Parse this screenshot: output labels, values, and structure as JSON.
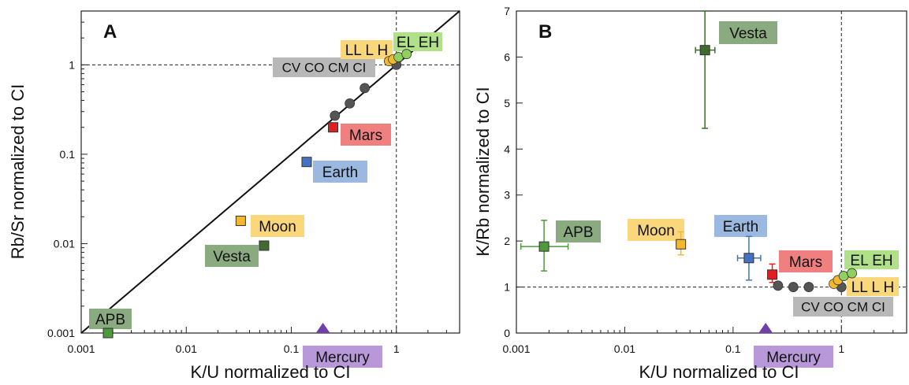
{
  "chart_data": [
    {
      "id": "A",
      "type": "scatter",
      "panel_label": "A",
      "xlabel": "K/U normalized to CI",
      "ylabel": "Rb/Sr normalized to CI",
      "xscale": "log",
      "yscale": "log",
      "xlim": [
        0.001,
        4
      ],
      "ylim": [
        0.001,
        4
      ],
      "xticks": [
        "0.001",
        "0.01",
        "0.1",
        "1"
      ],
      "yticks": [
        "0.001",
        "0.01",
        "0.1",
        "1"
      ],
      "reference_lines": {
        "x": 1,
        "y": 1,
        "style": "dashed"
      },
      "line_1to1": true,
      "points": [
        {
          "name": "APB",
          "x": 0.0018,
          "y": 0.001,
          "marker": "square",
          "color": "#4e9a3a"
        },
        {
          "name": "Vesta",
          "x": 0.055,
          "y": 0.0095,
          "marker": "square",
          "color": "#3e6b2e"
        },
        {
          "name": "Moon",
          "x": 0.033,
          "y": 0.018,
          "marker": "square",
          "color": "#f2b830"
        },
        {
          "name": "Earth",
          "x": 0.14,
          "y": 0.082,
          "marker": "square",
          "color": "#4572c0"
        },
        {
          "name": "Mars",
          "x": 0.25,
          "y": 0.2,
          "marker": "square",
          "color": "#e02020"
        },
        {
          "name": "CV",
          "x": 0.26,
          "y": 0.27,
          "marker": "circle",
          "color": "#555555"
        },
        {
          "name": "CO",
          "x": 0.36,
          "y": 0.37,
          "marker": "circle",
          "color": "#555555"
        },
        {
          "name": "CM",
          "x": 0.5,
          "y": 0.55,
          "marker": "circle",
          "color": "#555555"
        },
        {
          "name": "CI",
          "x": 1.0,
          "y": 1.0,
          "marker": "circle",
          "color": "#555555"
        },
        {
          "name": "LL",
          "x": 0.85,
          "y": 1.1,
          "marker": "circle",
          "color": "#f2b830"
        },
        {
          "name": "L",
          "x": 0.93,
          "y": 1.15,
          "marker": "circle",
          "color": "#f2b830"
        },
        {
          "name": "EL",
          "x": 1.05,
          "y": 1.22,
          "marker": "circle",
          "color": "#8fd060"
        },
        {
          "name": "EH",
          "x": 1.25,
          "y": 1.32,
          "marker": "circle",
          "color": "#8fd060"
        }
      ],
      "callouts": [
        {
          "text": "APB",
          "color": "#8aaa80"
        },
        {
          "text": "Vesta",
          "color": "#8aaa80"
        },
        {
          "text": "Moon",
          "color": "#fbd77b"
        },
        {
          "text": "Earth",
          "color": "#9ab8e0"
        },
        {
          "text": "Mars",
          "color": "#f08080"
        },
        {
          "text": "CV CO CM CI",
          "color": "#b8b8b8"
        },
        {
          "text": "LL L H",
          "color": "#fbd77b"
        },
        {
          "text": "EL EH",
          "color": "#b0e088"
        },
        {
          "text": "Mercury",
          "color": "#b898d8",
          "marker_color": "#7040a8",
          "x": 0.2
        }
      ]
    },
    {
      "id": "B",
      "type": "scatter",
      "panel_label": "B",
      "xlabel": "K/U normalized to CI",
      "ylabel": "K/Rb normalized to CI",
      "xscale": "log",
      "yscale": "linear",
      "xlim": [
        0.001,
        4
      ],
      "ylim": [
        0,
        7
      ],
      "xticks": [
        "0.001",
        "0.01",
        "0.1",
        "1"
      ],
      "yticks": [
        "0",
        "1",
        "2",
        "3",
        "4",
        "5",
        "6",
        "7"
      ],
      "reference_lines": {
        "x": 1,
        "y": 1,
        "style": "dashed"
      },
      "points": [
        {
          "name": "APB",
          "x": 0.0018,
          "y": 1.88,
          "marker": "square",
          "color": "#4e9a3a",
          "xerr": [
            0.0011,
            0.003
          ],
          "yerr": [
            1.35,
            2.45
          ]
        },
        {
          "name": "Vesta",
          "x": 0.055,
          "y": 6.15,
          "marker": "square",
          "color": "#3e6b2e",
          "xerr": [
            0.045,
            0.068
          ],
          "yerr": [
            4.45,
            7.0
          ]
        },
        {
          "name": "Moon",
          "x": 0.033,
          "y": 1.93,
          "marker": "square",
          "color": "#f2b830",
          "yerr": [
            1.7,
            2.2
          ]
        },
        {
          "name": "Earth",
          "x": 0.14,
          "y": 1.63,
          "marker": "square",
          "color": "#4572c0",
          "xerr": [
            0.11,
            0.18
          ],
          "yerr": [
            1.15,
            2.1
          ]
        },
        {
          "name": "Mars",
          "x": 0.23,
          "y": 1.27,
          "marker": "square",
          "color": "#e02020",
          "yerr": [
            1.1,
            1.5
          ]
        },
        {
          "name": "CV",
          "x": 0.26,
          "y": 1.03,
          "marker": "circle",
          "color": "#555555"
        },
        {
          "name": "CO",
          "x": 0.36,
          "y": 1.0,
          "marker": "circle",
          "color": "#555555"
        },
        {
          "name": "CM",
          "x": 0.5,
          "y": 1.0,
          "marker": "circle",
          "color": "#555555"
        },
        {
          "name": "CI",
          "x": 1.0,
          "y": 1.0,
          "marker": "circle",
          "color": "#555555"
        },
        {
          "name": "LL",
          "x": 0.85,
          "y": 1.07,
          "marker": "circle",
          "color": "#f2b830"
        },
        {
          "name": "L",
          "x": 0.93,
          "y": 1.15,
          "marker": "circle",
          "color": "#f2b830"
        },
        {
          "name": "EL",
          "x": 1.05,
          "y": 1.24,
          "marker": "circle",
          "color": "#8fd060"
        },
        {
          "name": "EH",
          "x": 1.25,
          "y": 1.3,
          "marker": "circle",
          "color": "#8fd060"
        }
      ],
      "callouts": [
        {
          "text": "Vesta",
          "color": "#8aaa80"
        },
        {
          "text": "APB",
          "color": "#8aaa80"
        },
        {
          "text": "Moon",
          "color": "#fbd77b"
        },
        {
          "text": "Earth",
          "color": "#9ab8e0"
        },
        {
          "text": "Mars",
          "color": "#f08080"
        },
        {
          "text": "EL EH",
          "color": "#b0e088"
        },
        {
          "text": "LL L H",
          "color": "#fbd77b"
        },
        {
          "text": "CV CO CM CI",
          "color": "#b8b8b8"
        },
        {
          "text": "Mercury",
          "color": "#b898d8",
          "marker_color": "#7040a8",
          "x": 0.2
        }
      ]
    }
  ]
}
